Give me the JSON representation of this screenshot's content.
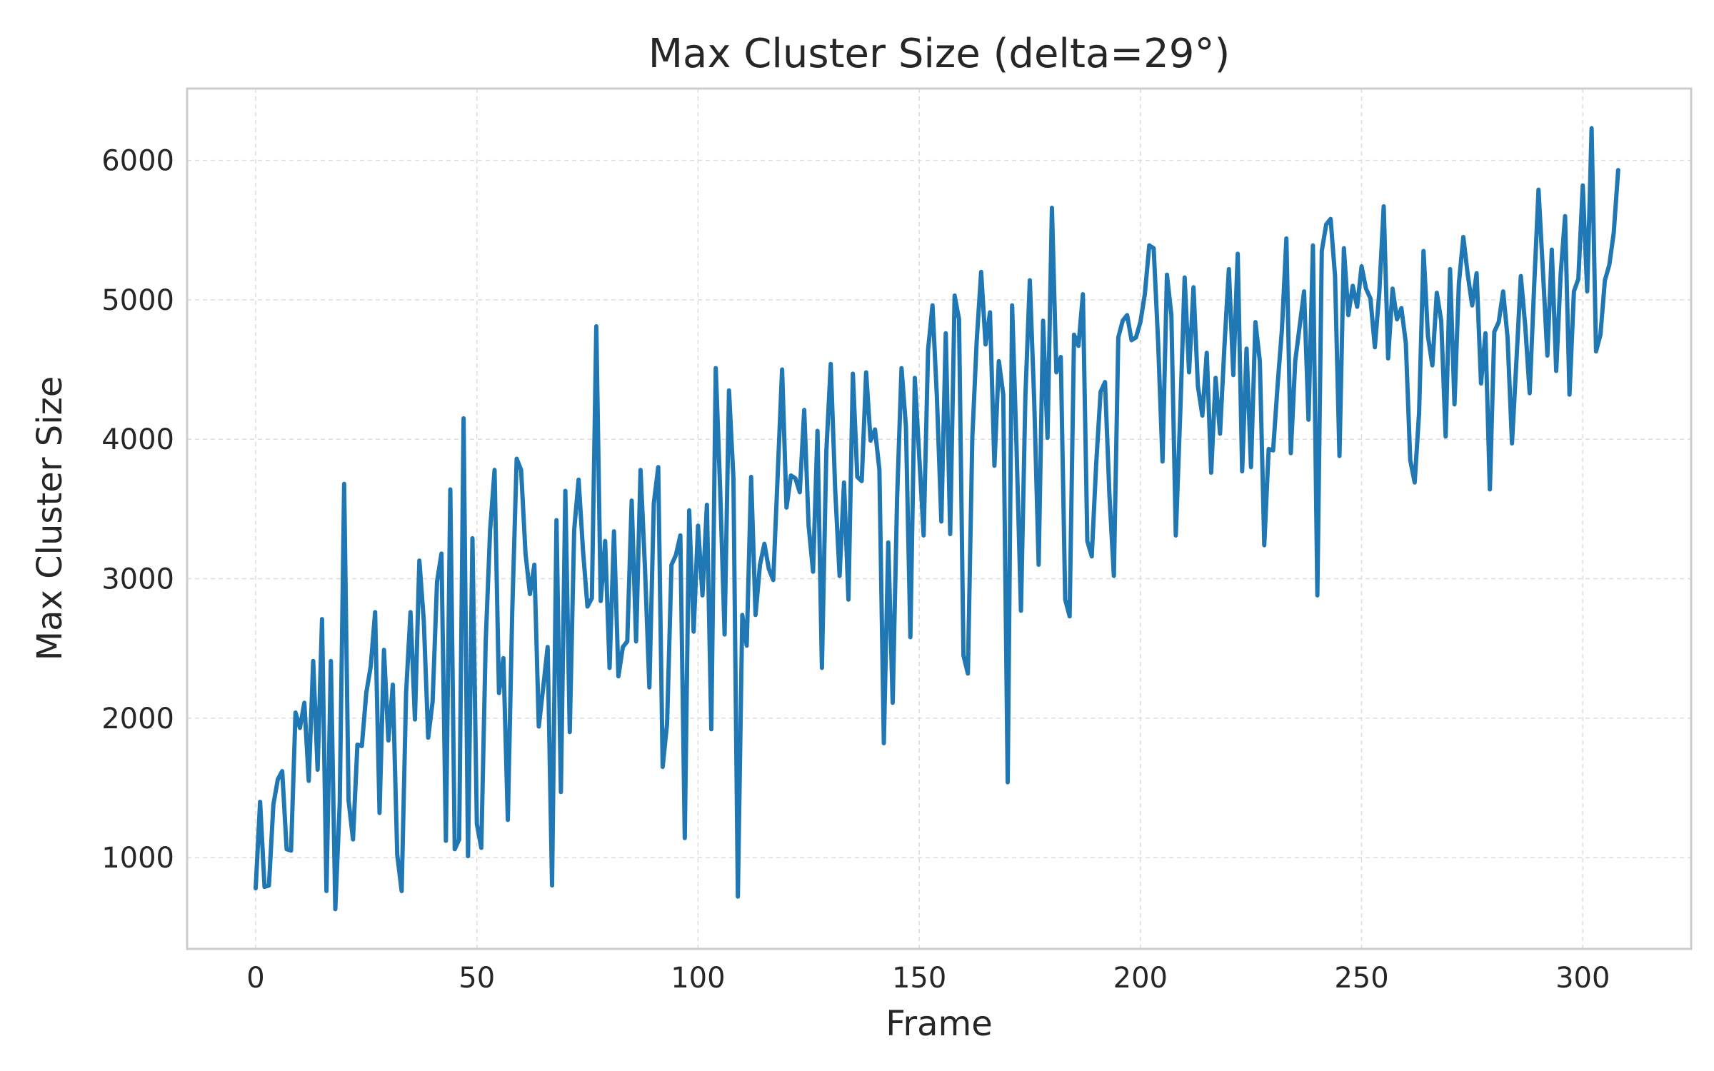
{
  "chart_data": {
    "type": "line",
    "title": "Max Cluster Size (delta=29°)",
    "xlabel": "Frame",
    "ylabel": "Max Cluster Size",
    "xlim": [
      -15.5,
      324.5
    ],
    "ylim": [
      345,
      6515
    ],
    "xticks": [
      0,
      50,
      100,
      150,
      200,
      250,
      300
    ],
    "yticks": [
      1000,
      2000,
      3000,
      4000,
      5000,
      6000
    ],
    "grid": true,
    "legend": false,
    "colors": {
      "line": "#1f77b4",
      "grid": "#dcdcdc",
      "frame": "#cccccc",
      "text": "#262626"
    },
    "series": [
      {
        "values": [
          780,
          1400,
          790,
          800,
          1380,
          1560,
          1620,
          1060,
          1050,
          2040,
          1930,
          2110,
          1550,
          2410,
          1630,
          2710,
          760,
          2410,
          630,
          1390,
          3680,
          1410,
          1130,
          1810,
          1800,
          2180,
          2370,
          2760,
          1320,
          2490,
          1840,
          2240,
          1020,
          760,
          2180,
          2760,
          1990,
          3130,
          2700,
          1860,
          2120,
          2980,
          3180,
          1120,
          3640,
          1060,
          1130,
          4150,
          1010,
          3290,
          1240,
          1070,
          2550,
          3350,
          3780,
          2180,
          2430,
          1270,
          2770,
          3860,
          3780,
          3180,
          2890,
          3100,
          1940,
          2220,
          2510,
          800,
          3420,
          1470,
          3630,
          1900,
          3350,
          3710,
          3200,
          2800,
          2860,
          4810,
          2840,
          3270,
          2360,
          3340,
          2300,
          2510,
          2550,
          3560,
          2550,
          3780,
          3080,
          2220,
          3540,
          3800,
          1650,
          1960,
          3100,
          3170,
          3310,
          1140,
          3490,
          2620,
          3380,
          2880,
          3530,
          1920,
          4510,
          3640,
          2600,
          4350,
          3720,
          720,
          2740,
          2520,
          3730,
          2740,
          3100,
          3250,
          3070,
          2990,
          3740,
          4500,
          3510,
          3740,
          3720,
          3620,
          4210,
          3380,
          3050,
          4060,
          2360,
          3910,
          4540,
          3640,
          3020,
          3690,
          2850,
          4470,
          3730,
          3700,
          4480,
          3990,
          4070,
          3780,
          1820,
          3260,
          2110,
          3580,
          4510,
          4090,
          2580,
          4440,
          3880,
          3310,
          4640,
          4960,
          4300,
          3410,
          4760,
          3320,
          5030,
          4860,
          2450,
          2320,
          4010,
          4710,
          5200,
          4680,
          4910,
          3810,
          4560,
          4320,
          1540,
          4960,
          3940,
          2770,
          4310,
          5140,
          4270,
          3100,
          4850,
          4010,
          5660,
          4480,
          4590,
          2850,
          2730,
          4750,
          4670,
          5040,
          3270,
          3160,
          3820,
          4340,
          4410,
          3600,
          3020,
          4730,
          4850,
          4890,
          4710,
          4730,
          4840,
          5040,
          5390,
          5370,
          4700,
          3840,
          5180,
          4890,
          3310,
          4180,
          5160,
          4480,
          5090,
          4380,
          4170,
          4620,
          3760,
          4440,
          4040,
          4670,
          5220,
          4460,
          5330,
          3770,
          4650,
          3800,
          4840,
          4560,
          3240,
          3930,
          3920,
          4380,
          4790,
          5440,
          3900,
          4560,
          4810,
          5060,
          4140,
          5390,
          2880,
          5350,
          5540,
          5580,
          5170,
          3880,
          5370,
          4890,
          5100,
          4950,
          5240,
          5080,
          5010,
          4660,
          5050,
          5670,
          4580,
          5080,
          4860,
          4940,
          4690,
          3850,
          3690,
          4190,
          5350,
          4740,
          4530,
          5050,
          4850,
          4020,
          5220,
          4250,
          5120,
          5450,
          5180,
          4960,
          5190,
          4400,
          4760,
          3640,
          4770,
          4840,
          5060,
          4730,
          3970,
          4560,
          5170,
          4810,
          4330,
          5090,
          5790,
          5200,
          4600,
          5360,
          4490,
          5180,
          5600,
          4320,
          5060,
          5150,
          5820,
          5060,
          6230,
          4630,
          4750,
          5140,
          5250,
          5480,
          5930
        ]
      }
    ]
  }
}
